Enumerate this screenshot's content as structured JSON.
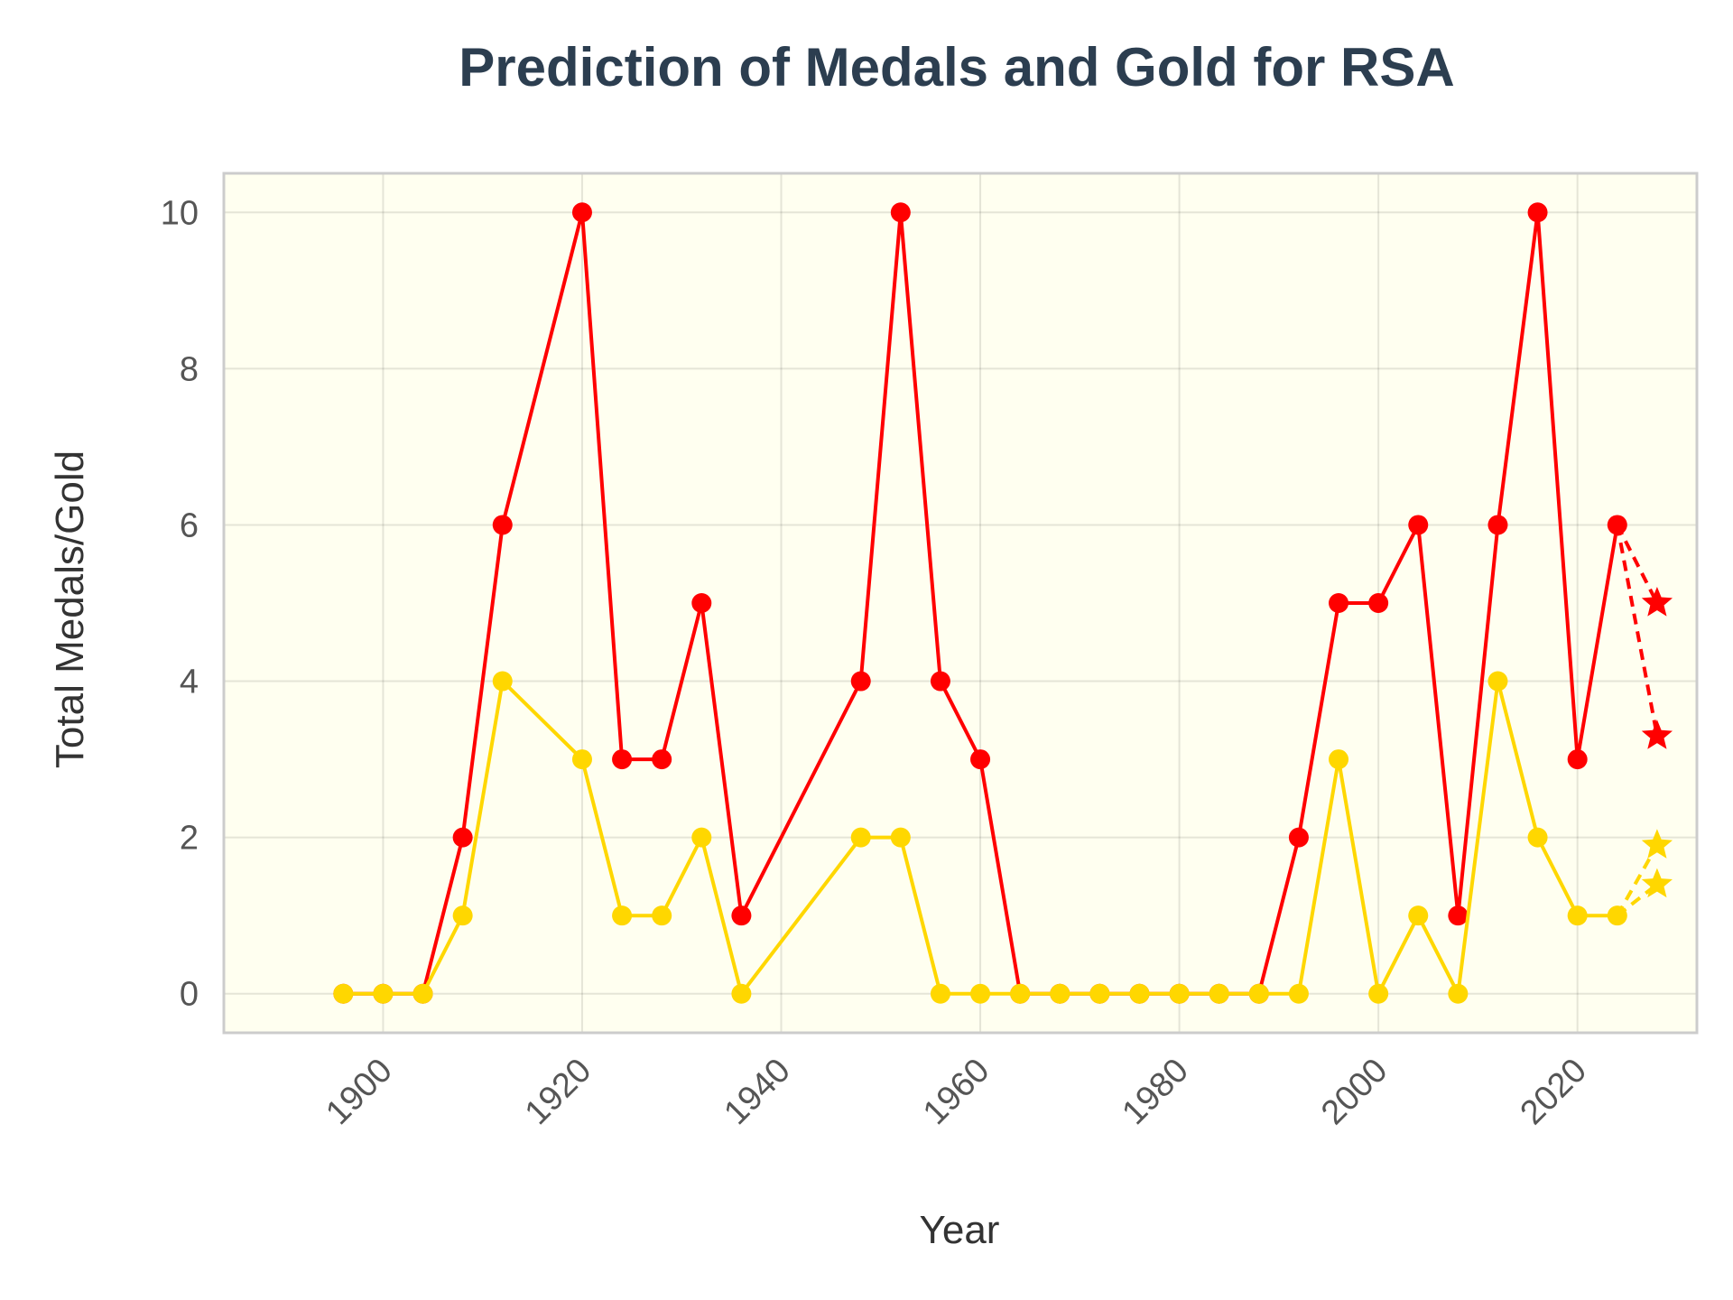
{
  "chart_data": {
    "type": "line",
    "title": "Prediction of Medals and Gold for RSA",
    "xlabel": "Year",
    "ylabel": "Total Medals/Gold",
    "xlim": [
      1884,
      2032
    ],
    "ylim": [
      -0.5,
      10.5
    ],
    "xticks": [
      "1900",
      "1920",
      "1940",
      "1960",
      "1980",
      "2000",
      "2020"
    ],
    "yticks": [
      "0",
      "2",
      "4",
      "6",
      "8",
      "10"
    ],
    "grid": true,
    "background_color": "#fffff0",
    "colors": {
      "total": "#ff0000",
      "gold": "#ffd700"
    },
    "x": [
      1896,
      1900,
      1904,
      1908,
      1912,
      1920,
      1924,
      1928,
      1932,
      1936,
      1948,
      1952,
      1956,
      1960,
      1964,
      1968,
      1972,
      1976,
      1980,
      1984,
      1988,
      1992,
      1996,
      2000,
      2004,
      2008,
      2012,
      2016,
      2020,
      2024
    ],
    "series": [
      {
        "key": "total",
        "values": [
          0,
          0,
          0,
          2,
          6,
          10,
          3,
          3,
          5,
          1,
          4,
          10,
          4,
          3,
          0,
          0,
          0,
          0,
          0,
          0,
          0,
          2,
          5,
          5,
          6,
          1,
          6,
          10,
          3,
          6
        ]
      },
      {
        "key": "gold",
        "values": [
          0,
          0,
          0,
          1,
          4,
          3,
          1,
          1,
          2,
          0,
          2,
          2,
          0,
          0,
          0,
          0,
          0,
          0,
          0,
          0,
          0,
          0,
          3,
          0,
          1,
          0,
          4,
          2,
          1,
          1
        ]
      }
    ],
    "predictions": {
      "x": 2028,
      "total": [
        5.0,
        3.3
      ],
      "gold": [
        1.9,
        1.4
      ]
    }
  }
}
